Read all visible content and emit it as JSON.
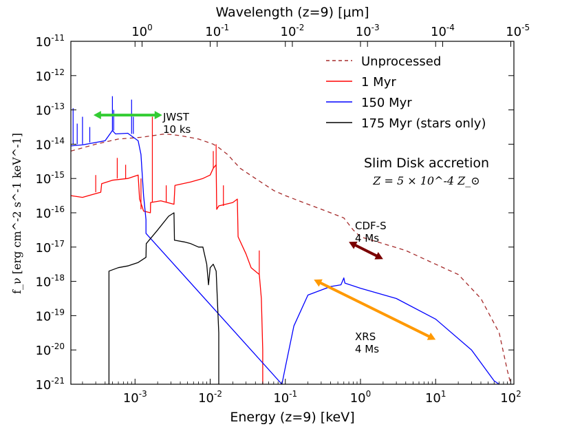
{
  "colors": {
    "unprocessed": "#a52a2a",
    "myr1": "#ff0000",
    "myr150": "#0000ff",
    "stars": "#000000",
    "jwst": "#33cc33",
    "cdfs": "#7a0000",
    "xrs": "#ff9900"
  },
  "chart_data": {
    "type": "line",
    "title": "",
    "xlabel": "Energy (z=9) [keV]",
    "x2label": "Wavelength (z=9) [μm]",
    "ylabel": "f_ν [erg cm^-2 s^-1 keV^-1]",
    "xscale": "log",
    "yscale": "log",
    "xlim": [
      0.00014,
      110
    ],
    "ylim": [
      1e-21,
      1e-11
    ],
    "x_ticks": [
      {
        "value": 0.001,
        "base": "10",
        "exp": "-3"
      },
      {
        "value": 0.01,
        "base": "10",
        "exp": "-2"
      },
      {
        "value": 0.1,
        "base": "10",
        "exp": "-1"
      },
      {
        "value": 1,
        "base": "10",
        "exp": "0"
      },
      {
        "value": 10,
        "base": "10",
        "exp": "1"
      },
      {
        "value": 100,
        "base": "10",
        "exp": "2"
      }
    ],
    "top_ticks": [
      {
        "energy": 0.00124,
        "base": "10",
        "exp": "0"
      },
      {
        "energy": 0.0124,
        "base": "10",
        "exp": "-1"
      },
      {
        "energy": 0.124,
        "base": "10",
        "exp": "-2"
      },
      {
        "energy": 1.24,
        "base": "10",
        "exp": "-3"
      },
      {
        "energy": 12.4,
        "base": "10",
        "exp": "-4"
      },
      {
        "energy": 124,
        "base": "10",
        "exp": "-5"
      }
    ],
    "y_ticks": [
      {
        "value": -11,
        "base": "10",
        "exp": "-11"
      },
      {
        "value": -12,
        "base": "10",
        "exp": "-12"
      },
      {
        "value": -13,
        "base": "10",
        "exp": "-13"
      },
      {
        "value": -14,
        "base": "10",
        "exp": "-14"
      },
      {
        "value": -15,
        "base": "10",
        "exp": "-15"
      },
      {
        "value": -16,
        "base": "10",
        "exp": "-16"
      },
      {
        "value": -17,
        "base": "10",
        "exp": "-17"
      },
      {
        "value": -18,
        "base": "10",
        "exp": "-18"
      },
      {
        "value": -19,
        "base": "10",
        "exp": "-19"
      },
      {
        "value": -20,
        "base": "10",
        "exp": "-20"
      },
      {
        "value": -21,
        "base": "10",
        "exp": "-21"
      }
    ],
    "legend": {
      "placement": "top-right",
      "entries": [
        {
          "label": "Unprocessed",
          "color": "#a52a2a",
          "dash": true
        },
        {
          "label": "1 Myr",
          "color": "#ff0000",
          "dash": false
        },
        {
          "label": "150 Myr",
          "color": "#0000ff",
          "dash": false
        },
        {
          "label": "175 Myr (stars only)",
          "color": "#000000",
          "dash": false
        }
      ]
    },
    "annotation_title": "Slim Disk accretion",
    "annotation_metallicity": "Z = 5 × 10^-4 Z_⊙",
    "series": [
      {
        "name": "Unprocessed",
        "style": "dashed",
        "points": [
          [
            0.00014,
            -14.2
          ],
          [
            0.0003,
            -14.0
          ],
          [
            0.0006,
            -13.85
          ],
          [
            0.0012,
            -13.8
          ],
          [
            0.0025,
            -13.7
          ],
          [
            0.004,
            -13.75
          ],
          [
            0.007,
            -13.85
          ],
          [
            0.011,
            -14.0
          ],
          [
            0.013,
            -14.1
          ],
          [
            0.017,
            -14.3
          ],
          [
            0.025,
            -14.7
          ],
          [
            0.04,
            -15.0
          ],
          [
            0.07,
            -15.35
          ],
          [
            0.1,
            -15.5
          ],
          [
            0.2,
            -15.75
          ],
          [
            0.4,
            -16.0
          ],
          [
            0.6,
            -16.15
          ],
          [
            0.8,
            -16.5
          ],
          [
            1.0,
            -16.7
          ],
          [
            2.0,
            -16.9
          ],
          [
            4.0,
            -17.1
          ],
          [
            10.0,
            -17.5
          ],
          [
            20.0,
            -17.8
          ],
          [
            40.0,
            -18.5
          ],
          [
            70.0,
            -19.5
          ],
          [
            90.0,
            -20.6
          ],
          [
            100.0,
            -21.0
          ]
        ]
      },
      {
        "name": "1 Myr",
        "style": "solid",
        "points": [
          [
            0.00014,
            -15.5
          ],
          [
            0.0002,
            -15.55
          ],
          [
            0.00035,
            -15.4
          ],
          [
            0.00036,
            -15.15
          ],
          [
            0.0005,
            -15.05
          ],
          [
            0.0008,
            -15.0
          ],
          [
            0.0011,
            -14.9
          ],
          [
            0.00115,
            -15.6
          ],
          [
            0.0013,
            -15.95
          ],
          [
            0.0016,
            -16.0
          ],
          [
            0.00161,
            -15.7
          ],
          [
            0.0022,
            -15.65
          ],
          [
            0.0033,
            -15.75
          ],
          [
            0.0034,
            -15.2
          ],
          [
            0.0055,
            -15.1
          ],
          [
            0.008,
            -15.0
          ],
          [
            0.01,
            -14.9
          ],
          [
            0.011,
            -14.7
          ],
          [
            0.012,
            -14.6
          ],
          [
            0.0122,
            -15.9
          ],
          [
            0.013,
            -15.8
          ],
          [
            0.02,
            -15.7
          ],
          [
            0.023,
            -15.6
          ],
          [
            0.0235,
            -16.7
          ],
          [
            0.03,
            -17.2
          ],
          [
            0.035,
            -17.6
          ],
          [
            0.045,
            -17.8
          ],
          [
            0.048,
            -18.5
          ],
          [
            0.05,
            -20.0
          ],
          [
            0.05,
            -21.0
          ]
        ]
      },
      {
        "name": "150 Myr",
        "style": "solid",
        "points": [
          [
            0.00014,
            -14.05
          ],
          [
            0.0002,
            -14.02
          ],
          [
            0.0003,
            -13.95
          ],
          [
            0.0004,
            -13.9
          ],
          [
            0.0005,
            -13.6
          ],
          [
            0.00055,
            -13.7
          ],
          [
            0.0008,
            -13.68
          ],
          [
            0.0011,
            -13.9
          ],
          [
            0.0012,
            -14.3
          ],
          [
            0.0013,
            -15.5
          ],
          [
            0.0014,
            -16.2
          ],
          [
            0.0014,
            -16.6
          ],
          [
            0.09,
            -21.0
          ],
          [
            0.1,
            -20.5
          ],
          [
            0.13,
            -19.3
          ],
          [
            0.2,
            -18.4
          ],
          [
            0.4,
            -18.15
          ],
          [
            0.55,
            -18.1
          ],
          [
            0.6,
            -17.9
          ],
          [
            0.62,
            -18.05
          ],
          [
            1.0,
            -18.2
          ],
          [
            3.0,
            -18.5
          ],
          [
            10.0,
            -19.1
          ],
          [
            30.0,
            -20.0
          ],
          [
            60.0,
            -20.9
          ],
          [
            70.0,
            -21.0
          ]
        ]
      },
      {
        "name": "175 Myr (stars only)",
        "style": "solid",
        "points": [
          [
            0.00045,
            -21.0
          ],
          [
            0.00045,
            -17.7
          ],
          [
            0.0006,
            -17.6
          ],
          [
            0.0008,
            -17.55
          ],
          [
            0.0011,
            -17.45
          ],
          [
            0.0014,
            -17.3
          ],
          [
            0.00141,
            -16.9
          ],
          [
            0.002,
            -16.5
          ],
          [
            0.0028,
            -16.1
          ],
          [
            0.0033,
            -16.0
          ],
          [
            0.00335,
            -16.8
          ],
          [
            0.0045,
            -16.85
          ],
          [
            0.0055,
            -16.9
          ],
          [
            0.007,
            -17.0
          ],
          [
            0.008,
            -17.0
          ],
          [
            0.009,
            -17.5
          ],
          [
            0.0095,
            -18.1
          ],
          [
            0.01,
            -17.6
          ],
          [
            0.011,
            -17.5
          ],
          [
            0.012,
            -17.7
          ],
          [
            0.013,
            -19.5
          ],
          [
            0.013,
            -21.0
          ]
        ]
      }
    ],
    "arrows": [
      {
        "label_lines": [
          "JWST",
          "10 ks"
        ],
        "x": [
          0.00028,
          0.0023
        ],
        "y": [
          -13.15,
          -13.15
        ],
        "color": "#33cc33"
      },
      {
        "label_lines": [
          "CDF-S",
          "4 Ms"
        ],
        "x": [
          0.7,
          2.0
        ],
        "y": [
          -16.85,
          -17.35
        ],
        "color": "#7a0000"
      },
      {
        "label_lines": [
          "XRS",
          "4 Ms"
        ],
        "x": [
          0.24,
          10.0
        ],
        "y": [
          -17.95,
          -19.7
        ],
        "color": "#ff9900"
      }
    ]
  }
}
